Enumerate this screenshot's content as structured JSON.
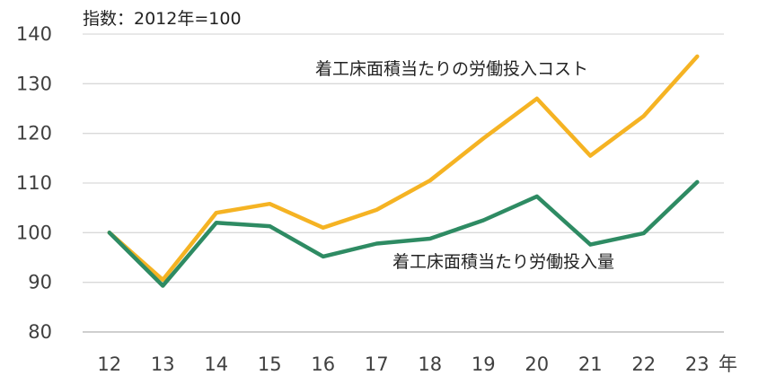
{
  "chart_data": {
    "type": "line",
    "note": "指数：2012年=100",
    "x_unit": "年",
    "categories": [
      "12",
      "13",
      "14",
      "15",
      "16",
      "17",
      "18",
      "19",
      "20",
      "21",
      "22",
      "23"
    ],
    "ylim": [
      80,
      140
    ],
    "yticks": [
      80,
      90,
      100,
      110,
      120,
      130,
      140
    ],
    "grid": true,
    "series": [
      {
        "name": "着工床面積当たりの労働投入コスト",
        "color": "#F5B323",
        "values": [
          100,
          90.5,
          104,
          105.8,
          101,
          104.6,
          110.5,
          119,
          127,
          115.5,
          123.5,
          135.5
        ]
      },
      {
        "name": "着工床面積当たり労働投入量",
        "color": "#2E8B63",
        "values": [
          100,
          89.3,
          102,
          101.3,
          95.2,
          97.8,
          98.8,
          102.5,
          107.3,
          97.6,
          99.9,
          110.2
        ]
      }
    ]
  }
}
